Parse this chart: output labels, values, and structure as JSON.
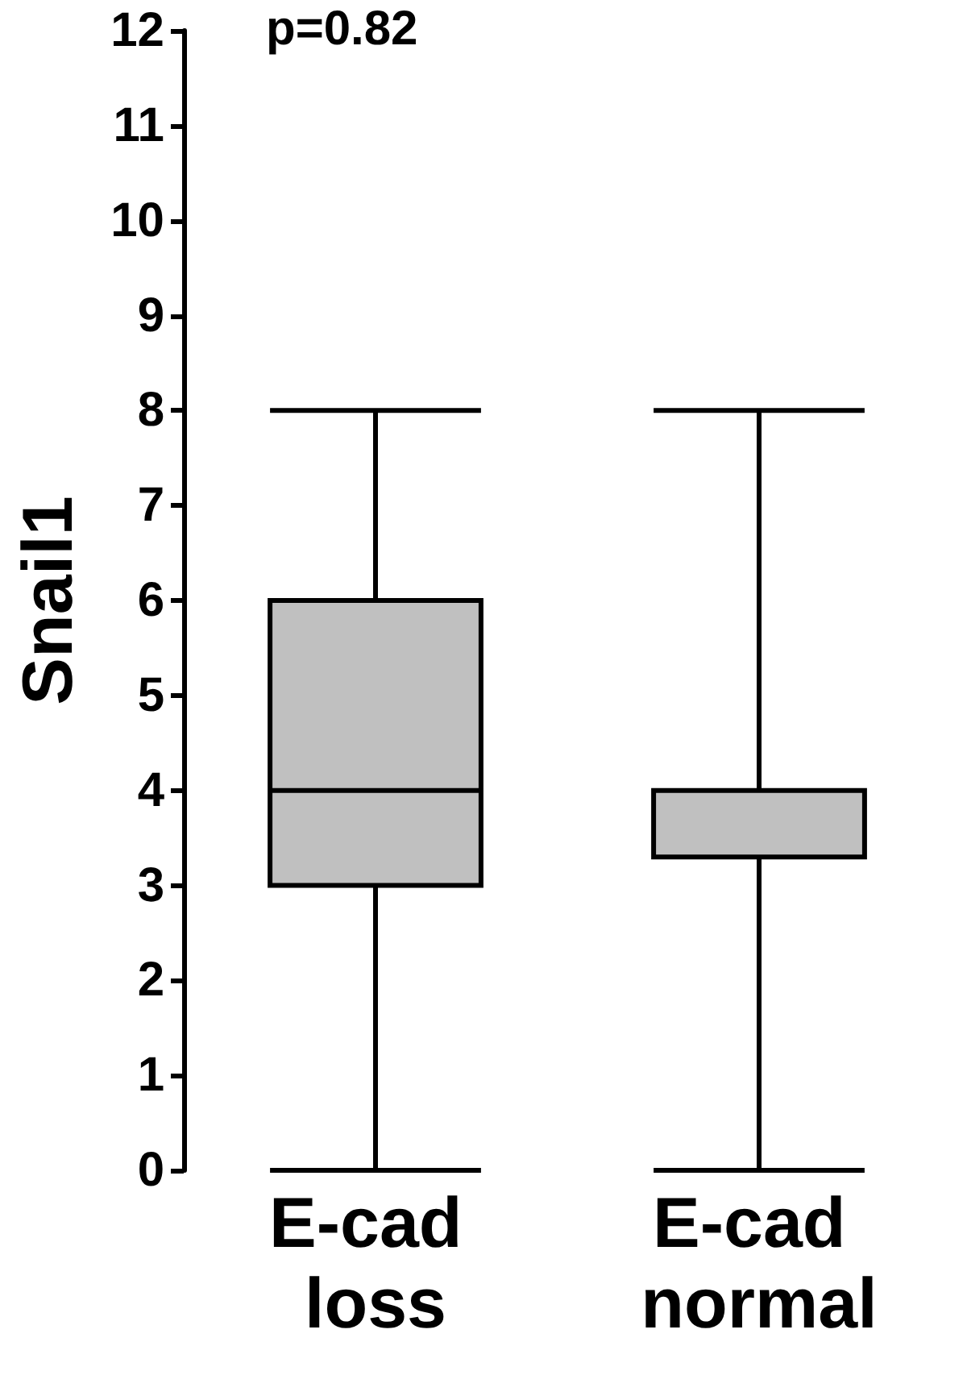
{
  "chart_data": {
    "type": "box",
    "ylabel": "Snail1",
    "categories": [
      "E-cad loss",
      "E-cad normal"
    ],
    "boxes": [
      {
        "low": 0,
        "q1": 3,
        "median": 4,
        "q3": 6,
        "high": 8
      },
      {
        "low": 0,
        "q1": 3.3,
        "median": 4,
        "q3": 4,
        "high": 8
      }
    ],
    "color": "#c0c0c0",
    "ylim": [
      0,
      12
    ],
    "yticks": [
      0,
      1,
      2,
      3,
      4,
      5,
      6,
      7,
      8,
      9,
      10,
      11,
      12
    ],
    "annotations": [
      "p=0.82"
    ]
  }
}
